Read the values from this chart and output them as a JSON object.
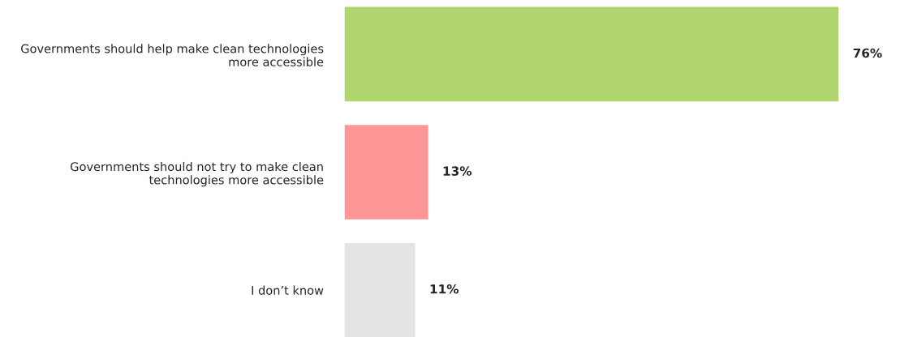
{
  "chart_data": {
    "type": "bar",
    "orientation": "horizontal",
    "categories": [
      "Governments should help make clean technologies\nmore accessible",
      "Governments should not try to make clean\ntechnologies more accessible",
      "I don’t know"
    ],
    "values": [
      76,
      13,
      11
    ],
    "colors": [
      "#b0d46e",
      "#fd9696",
      "#e3e4e3"
    ],
    "value_labels": [
      "76%",
      "13%",
      "11%"
    ],
    "grid": false,
    "legend": false
  }
}
